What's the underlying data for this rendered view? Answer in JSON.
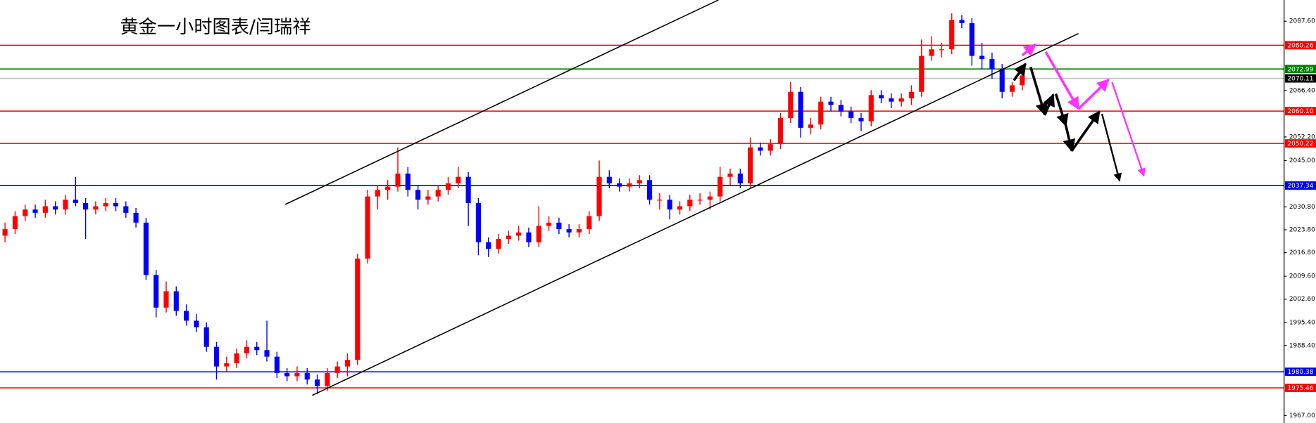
{
  "chart_data": {
    "type": "candlestick",
    "title": "黄金一小时图表/闫瑞祥",
    "open": [
      2022,
      2024,
      2028,
      2030,
      2029,
      2031,
      2030,
      2033,
      2032,
      2030,
      2031,
      2032,
      2031,
      2029,
      2026,
      2010,
      2000,
      2005,
      1999,
      1996,
      1994,
      1988,
      1982,
      1983,
      1986,
      1988,
      1987,
      1985,
      1980,
      1979,
      1980,
      1978,
      1976,
      1980,
      1982,
      1984,
      2015,
      2034,
      2036,
      2037,
      2041,
      2036,
      2033,
      2034,
      2036,
      2038,
      2040,
      2032,
      2020,
      2018,
      2021,
      2022,
      2023,
      2020,
      2025,
      2026,
      2024,
      2023,
      2024,
      2028,
      2040,
      2038,
      2037,
      2038,
      2039,
      2033,
      2033,
      2030,
      2031,
      2033,
      2033,
      2034,
      2040,
      2041,
      2038,
      2049,
      2048,
      2050,
      2058,
      2066,
      2055,
      2056,
      2063,
      2062,
      2060,
      2058,
      2057,
      2065,
      2064,
      2063,
      2064,
      2066,
      2077,
      2079,
      2079,
      2088,
      2087,
      2077,
      2076,
      2073,
      2066,
      2068
    ],
    "high": [
      2026,
      2029.5,
      2031.5,
      2031.5,
      2033,
      2032.5,
      2034.5,
      2040,
      2033.5,
      2032.5,
      2033.5,
      2033.5,
      2032.5,
      2030.5,
      2027.5,
      2011.5,
      2008,
      2006.5,
      2001,
      1998,
      1995.5,
      1989.5,
      1985,
      1987.5,
      1990,
      1989.5,
      1996,
      1986.5,
      1981.5,
      1982,
      1981.5,
      1979.5,
      1981.5,
      1983.5,
      1986,
      2016.5,
      2036,
      2037.5,
      2039,
      2049,
      2043,
      2037.5,
      2036,
      2037.5,
      2040,
      2043,
      2041.5,
      2033.5,
      2021.5,
      2022.5,
      2023.5,
      2025,
      2024.5,
      2031,
      2028,
      2027.5,
      2025.5,
      2025.5,
      2029.5,
      2045,
      2042,
      2039.5,
      2039.5,
      2040.5,
      2040.5,
      2035,
      2034.5,
      2032.5,
      2034.5,
      2035,
      2035.5,
      2043,
      2042.5,
      2042.5,
      2052,
      2050.5,
      2051.5,
      2059.5,
      2069,
      2067.5,
      2058,
      2064.5,
      2064.5,
      2063.5,
      2061.5,
      2059.5,
      2066.5,
      2066.5,
      2065.5,
      2065.5,
      2068,
      2082,
      2083,
      2081,
      2090,
      2089.5,
      2088.5,
      2081,
      2078,
      2074.5,
      2069,
      2072.5
    ],
    "low": [
      2020,
      2022.5,
      2026.5,
      2027.5,
      2027.5,
      2028.5,
      2028.5,
      2031,
      2021,
      2028.5,
      2029.5,
      2029.5,
      2027.5,
      2024.5,
      2008.5,
      1997,
      1998.5,
      1997.5,
      1994.5,
      1992.5,
      1986.5,
      1978,
      1980.5,
      1981.5,
      1984.5,
      1985.5,
      1983.5,
      1978.5,
      1977.5,
      1977.5,
      1976.5,
      1973.5,
      1974.5,
      1978.5,
      1979,
      1982.5,
      2013.5,
      2030,
      2033,
      2035.5,
      2034,
      2030,
      2031.5,
      2032.5,
      2034.5,
      2036.5,
      2025,
      2016,
      2015.5,
      2016.5,
      2019.5,
      2020.5,
      2018.5,
      2018.5,
      2023.5,
      2022.5,
      2021.5,
      2021.5,
      2022.5,
      2026.5,
      2036.5,
      2035.5,
      2035.5,
      2036.5,
      2031.5,
      2030,
      2027,
      2028.5,
      2029.5,
      2031.5,
      2030,
      2032.5,
      2037.5,
      2036.5,
      2036.5,
      2046.5,
      2046.5,
      2048.5,
      2056.5,
      2052,
      2053,
      2054.5,
      2060,
      2058.5,
      2056.5,
      2054,
      2055.5,
      2062.5,
      2061,
      2061.5,
      2062,
      2064.5,
      2075.5,
      2076.5,
      2077.5,
      2085.5,
      2074,
      2073,
      2070,
      2064,
      2064.5,
      2066.5
    ],
    "close": [
      2024,
      2028,
      2030,
      2029,
      2031,
      2030,
      2033,
      2032,
      2030,
      2031,
      2032,
      2031,
      2029,
      2026,
      2010,
      2000,
      2005,
      1999,
      1996,
      1994,
      1988,
      1982,
      1983,
      1986,
      1988,
      1987,
      1985,
      1980,
      1979,
      1980,
      1978,
      1976,
      1980,
      1982,
      1984,
      2015,
      2034,
      2036,
      2037,
      2041,
      2036,
      2033,
      2034,
      2036,
      2038,
      2040,
      2032,
      2020,
      2018,
      2021,
      2022,
      2023,
      2020,
      2025,
      2026,
      2024,
      2023,
      2024,
      2028,
      2040,
      2038,
      2037,
      2038,
      2039,
      2033,
      2033,
      2030,
      2031,
      2033,
      2033,
      2034,
      2040,
      2041,
      2038,
      2049,
      2048,
      2050,
      2058,
      2066,
      2055,
      2056,
      2063,
      2062,
      2060,
      2058,
      2057,
      2065,
      2064,
      2063,
      2064,
      2066,
      2077,
      2079,
      2079,
      2088,
      2087,
      2077,
      2076,
      2073,
      2066,
      2068,
      2071
    ],
    "up_color": "#ff0000",
    "down_color": "#0000ff",
    "ylim": [
      1964.71,
      2094.09
    ],
    "yticks": [
      {
        "value": 2087.6,
        "label": "2087.60"
      },
      {
        "value": 2066.4,
        "label": "2066.40"
      },
      {
        "value": 2052.2,
        "label": "2052.20"
      },
      {
        "value": 2045,
        "label": "2045.00"
      },
      {
        "value": 2030.8,
        "label": "2030.80"
      },
      {
        "value": 2023.8,
        "label": "2023.80"
      },
      {
        "value": 2016.8,
        "label": "2016.80"
      },
      {
        "value": 2009.6,
        "label": "2009.60"
      },
      {
        "value": 2002.6,
        "label": "2002.60"
      },
      {
        "value": 1995.4,
        "label": "1995.40"
      },
      {
        "value": 1988.4,
        "label": "1988.40"
      },
      {
        "value": 1967,
        "label": "1967.00"
      }
    ],
    "levels": [
      {
        "value": 2080.26,
        "color": "#ff0000"
      },
      {
        "value": 2072.99,
        "color": "#008000"
      },
      {
        "value": 2070.11,
        "color": "#c0c0c0"
      },
      {
        "value": 2060.1,
        "label": "2060.10",
        "color": "#ff0000"
      },
      {
        "value": 2050.22,
        "color": "#ff0000"
      },
      {
        "value": 2037.34,
        "color": "#0000ff"
      },
      {
        "value": 1980.38,
        "color": "#0000ff"
      },
      {
        "value": 1975.46,
        "color": "#ff0000"
      }
    ]
  }
}
